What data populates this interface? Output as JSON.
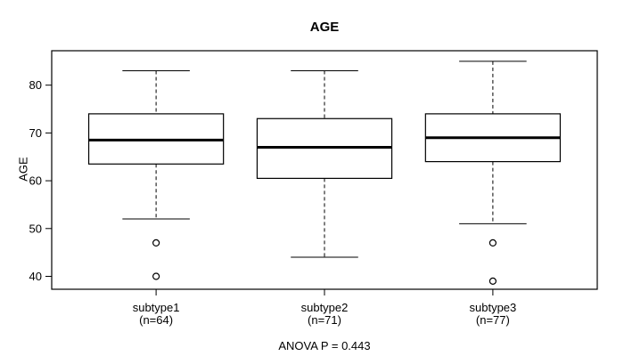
{
  "figure": {
    "background_color": "#ffffff",
    "line_color": "#000000"
  },
  "chart_data": {
    "type": "boxplot",
    "title": "AGE",
    "xlabel": "",
    "ylabel": "AGE",
    "footer": "ANOVA P = 0.443",
    "yticks": [
      40,
      50,
      60,
      70,
      80
    ],
    "ylim": [
      37.3,
      87.2
    ],
    "grid": false,
    "legend": false,
    "groups": [
      {
        "label": "subtype1",
        "sublabel": "(n=64)",
        "whisker_low": 52,
        "q1": 63.5,
        "median": 68.5,
        "q3": 74,
        "whisker_high": 83,
        "outliers": [
          47,
          40
        ]
      },
      {
        "label": "subtype2",
        "sublabel": "(n=71)",
        "whisker_low": 44,
        "q1": 60.5,
        "median": 67,
        "q3": 73,
        "whisker_high": 83,
        "outliers": []
      },
      {
        "label": "subtype3",
        "sublabel": "(n=77)",
        "whisker_low": 51,
        "q1": 64,
        "median": 69,
        "q3": 74,
        "whisker_high": 85,
        "outliers": [
          47,
          39
        ]
      }
    ]
  }
}
